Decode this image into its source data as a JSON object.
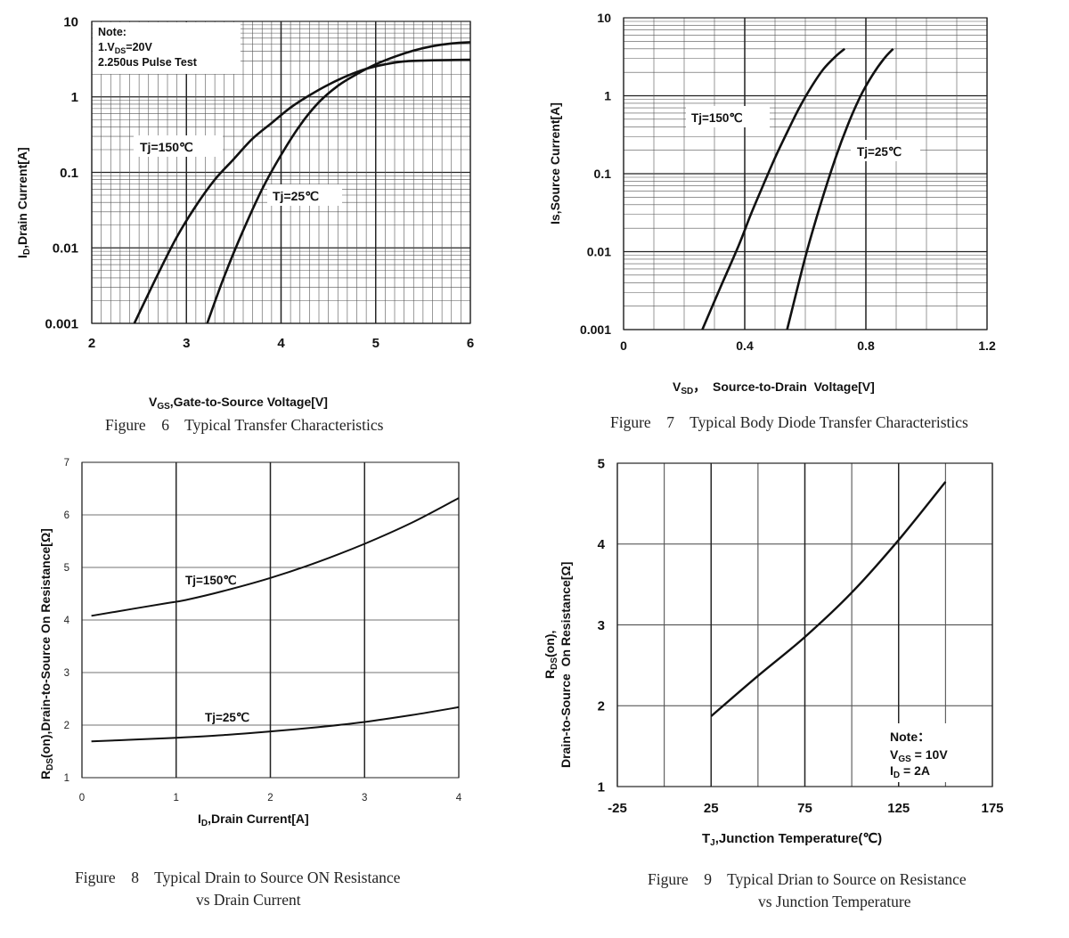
{
  "chart_data": [
    {
      "type": "line",
      "caption_line1": "Figure    6    Typical Transfer Characteristics",
      "xlabel_main": "V",
      "xlabel_sub": "GS",
      "xlabel_rest": ",Gate-to-Source  Voltage[V]",
      "ylabel_main": "I",
      "ylabel_sub": "D",
      "ylabel_rest": ",Drain Current[A]",
      "xlim": [
        2,
        6
      ],
      "ylim": [
        0.001,
        10
      ],
      "y_scale": "log",
      "x_ticks": [
        "2",
        "3",
        "4",
        "5",
        "6"
      ],
      "y_ticks": [
        "0.001",
        "0.01",
        "0.1",
        "1",
        "10"
      ],
      "note_title": "Note:",
      "note_line1_main": "1.V",
      "note_line1_sub": "DS",
      "note_line1_rest": "=20V",
      "note_line2": "2.250us Pulse Test",
      "series": [
        {
          "name": "Tj=150℃",
          "x": [
            2.45,
            2.7,
            2.9,
            3.1,
            3.3,
            3.5,
            3.7,
            3.9,
            4.1,
            4.3,
            4.5,
            4.7,
            4.9,
            5.1,
            5.3,
            5.6,
            6.0
          ],
          "y": [
            0.001,
            0.0045,
            0.014,
            0.036,
            0.08,
            0.15,
            0.28,
            0.45,
            0.72,
            1.05,
            1.45,
            1.9,
            2.35,
            2.7,
            2.95,
            3.05,
            3.1
          ]
        },
        {
          "name": "Tj=25℃",
          "x": [
            3.22,
            3.4,
            3.6,
            3.8,
            4.0,
            4.2,
            4.4,
            4.6,
            4.8,
            5.0,
            5.2,
            5.4,
            5.6,
            5.8,
            6.0
          ],
          "y": [
            0.001,
            0.0042,
            0.017,
            0.06,
            0.17,
            0.42,
            0.85,
            1.4,
            2.0,
            2.7,
            3.4,
            4.1,
            4.7,
            5.1,
            5.3
          ]
        }
      ]
    },
    {
      "type": "line",
      "caption_line1": "Figure    7    Typical Body Diode Transfer Characteristics",
      "xlabel_main": "V",
      "xlabel_sub": "SD",
      "xlabel_rest": "，  Source-to-Drain  Voltage[V]",
      "ylabel_text": "Is,Source Current[A]",
      "xlim": [
        0,
        1.2
      ],
      "ylim": [
        0.001,
        10
      ],
      "y_scale": "log",
      "x_ticks": [
        "0",
        "0.4",
        "0.8",
        "1.2"
      ],
      "y_ticks": [
        "0.001",
        "0.01",
        "0.1",
        "1",
        "10"
      ],
      "series": [
        {
          "name": "Tj=150℃",
          "x": [
            0.26,
            0.32,
            0.38,
            0.42,
            0.46,
            0.5,
            0.54,
            0.58,
            0.62,
            0.66,
            0.7,
            0.73
          ],
          "y": [
            0.001,
            0.0035,
            0.012,
            0.03,
            0.07,
            0.16,
            0.34,
            0.7,
            1.3,
            2.2,
            3.2,
            4.0
          ]
        },
        {
          "name": "Tj=25℃",
          "x": [
            0.54,
            0.6,
            0.65,
            0.7,
            0.74,
            0.78,
            0.82,
            0.86,
            0.89
          ],
          "y": [
            0.001,
            0.0085,
            0.04,
            0.16,
            0.42,
            0.95,
            1.8,
            3.0,
            4.0
          ]
        }
      ]
    },
    {
      "type": "line",
      "caption_line1": "Figure    8    Typical Drain to Source ON Resistance",
      "caption_line2": "vs Drain Current",
      "xlabel_main": "I",
      "xlabel_sub": "D",
      "xlabel_rest": ",Drain Current[A]",
      "ylabel_main": "R",
      "ylabel_sub": "DS",
      "ylabel_rest": "(on),Drain-to-Source On Resistance[Ω]",
      "xlim": [
        0,
        4
      ],
      "ylim": [
        1,
        7
      ],
      "x_ticks": [
        "0",
        "1",
        "2",
        "3",
        "4"
      ],
      "y_ticks": [
        "1",
        "2",
        "3",
        "4",
        "5",
        "6",
        "7"
      ],
      "series": [
        {
          "name": "Tj=150℃",
          "x": [
            0.1,
            0.5,
            0.9,
            1.1,
            1.5,
            2.0,
            2.5,
            3.0,
            3.5,
            4.0
          ],
          "y": [
            4.08,
            4.2,
            4.32,
            4.38,
            4.55,
            4.8,
            5.1,
            5.45,
            5.85,
            6.32
          ]
        },
        {
          "name": "Tj=25℃",
          "x": [
            0.1,
            0.5,
            1.0,
            1.5,
            2.0,
            2.5,
            3.0,
            3.5,
            4.0
          ],
          "y": [
            1.69,
            1.72,
            1.76,
            1.81,
            1.88,
            1.96,
            2.06,
            2.19,
            2.34
          ]
        }
      ]
    },
    {
      "type": "line",
      "caption_line1": "Figure    9    Typical Drian to Source on Resistance",
      "caption_line2": "vs Junction Temperature",
      "xlabel_main": "T",
      "xlabel_sub": "J",
      "xlabel_rest": ",Junction Temperature(℃)",
      "ylabel_line1_main": "R",
      "ylabel_line1_sub": "DS",
      "ylabel_line1_rest": "(on),",
      "ylabel_line2": "Drain-to-Source  On Resistance[Ω]",
      "xlim": [
        -25,
        175
      ],
      "ylim": [
        1,
        5
      ],
      "x_ticks": [
        "-25",
        "25",
        "75",
        "125",
        "175"
      ],
      "y_ticks": [
        "1",
        "2",
        "3",
        "4",
        "5"
      ],
      "note_title": "Note：",
      "note_line1_main": "V",
      "note_line1_sub": "GS",
      "note_line1_rest": " = 10V",
      "note_line2_main": "I",
      "note_line2_sub": "D",
      "note_line2_rest": " = 2A",
      "series": [
        {
          "name": "",
          "x": [
            25,
            50,
            75,
            100,
            125,
            150
          ],
          "y": [
            1.87,
            2.37,
            2.85,
            3.4,
            4.05,
            4.77
          ]
        }
      ]
    }
  ]
}
